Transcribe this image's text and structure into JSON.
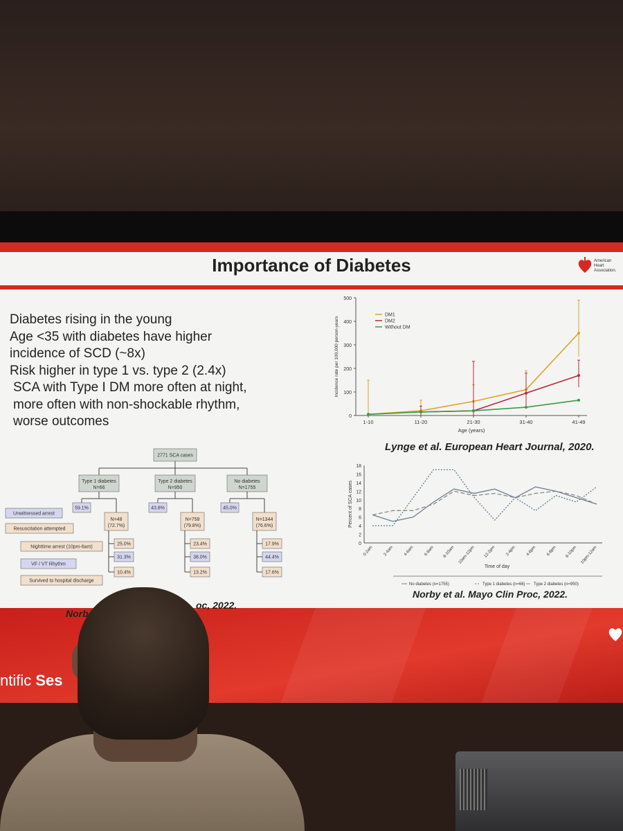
{
  "slide": {
    "title": "Importance of Diabetes",
    "logo_text": [
      "American",
      "Heart",
      "Association."
    ],
    "bullets": [
      "Diabetes rising in the young",
      "Age <35 with diabetes have higher",
      "incidence of SCD (~8x)",
      "Risk higher in type 1 vs. type 2 (2.4x)",
      "SCA with Type I DM more often at night,",
      "more often with non-shockable rhythm,",
      "worse outcomes"
    ],
    "citation_top": "Lynge et al. European Heart Journal, 2020.",
    "citation_bottom": "Norby et al. Mayo Clin Proc, 2022.",
    "citation_left_start": "Norb",
    "citation_left_end": "oc, 2022.",
    "footer": {
      "prefix": "ntific ",
      "bold": "Ses"
    }
  },
  "flow": {
    "root": "2771 SCA cases",
    "groups": [
      {
        "label": "Type 1 diabetes",
        "n": "N=66",
        "unwitnessed": "59.1%",
        "resus_label": "N=48",
        "resus_pct": "(72.7%)",
        "night": "25.0%",
        "vf": "31.3%",
        "survived": "10.4%"
      },
      {
        "label": "Type 2 diabetes",
        "n": "N=950",
        "unwitnessed": "43.8%",
        "resus_label": "N=758",
        "resus_pct": "(79.8%)",
        "night": "23.4%",
        "vf": "38.0%",
        "survived": "13.2%"
      },
      {
        "label": "No diabetes",
        "n": "N=1755",
        "unwitnessed": "45.0%",
        "resus_label": "N=1344",
        "resus_pct": "(76.6%)",
        "night": "17.9%",
        "vf": "44.4%",
        "survived": "17.6%"
      }
    ],
    "row_labels": [
      "Unwitnessed arrest",
      "Resuscitation attempted",
      "Nighttime arrest (10pm-6am)",
      "VF / VT Rhythm",
      "Survived to hospital discharge"
    ]
  },
  "chart_data": [
    {
      "type": "line",
      "categories": [
        "1-10",
        "11-20",
        "21-30",
        "31-40",
        "41-49"
      ],
      "xlabel": "Age (years)",
      "ylabel": "Incidence rate per 100,000 person-years",
      "ylim": [
        0,
        500
      ],
      "yticks": [
        0,
        100,
        200,
        300,
        400,
        500
      ],
      "legend": "top-left",
      "series": [
        {
          "name": "DM1",
          "color": "#d9a528",
          "values": [
            5,
            20,
            60,
            110,
            350
          ],
          "err_hi": [
            150,
            65,
            130,
            190,
            490
          ],
          "err_lo": [
            0,
            0,
            10,
            40,
            250
          ]
        },
        {
          "name": "DM2",
          "color": "#b8283a",
          "values": [
            null,
            15,
            20,
            95,
            170
          ],
          "err_hi": [
            null,
            40,
            230,
            180,
            235
          ],
          "err_lo": [
            null,
            0,
            0,
            40,
            120
          ]
        },
        {
          "name": "Without DM",
          "color": "#3a9a4a",
          "values": [
            5,
            15,
            20,
            35,
            65
          ]
        }
      ]
    },
    {
      "type": "line",
      "categories": [
        "0-2am",
        "2-4am",
        "4-6am",
        "6-8am",
        "8-10am",
        "10am-12pm",
        "12-2pm",
        "2-4pm",
        "4-6pm",
        "6-8pm",
        "8-10pm",
        "10pm-12am"
      ],
      "xlabel": "Time of day",
      "ylabel": "Percent of SCA cases",
      "ylim": [
        0,
        18
      ],
      "yticks": [
        0,
        2,
        4,
        6,
        8,
        10,
        12,
        14,
        16,
        18
      ],
      "legend": "bottom",
      "series": [
        {
          "name": "No diabetes (n=1755)",
          "color": "#6a7f93",
          "dash": "",
          "values": [
            6.5,
            5,
            6,
            9.5,
            12.5,
            11.5,
            12.5,
            10.5,
            13,
            12,
            10.5,
            9
          ]
        },
        {
          "name": "Type 1 diabetes (n=66)",
          "color": "#5a7d9a",
          "dash": "2,2",
          "values": [
            4,
            4,
            10.5,
            17,
            17,
            10.5,
            5.3,
            10.5,
            7.5,
            11,
            9.5,
            13
          ]
        },
        {
          "name": "Type 2 diabetes (n=950)",
          "color": "#8a8a8a",
          "dash": "6,3",
          "values": [
            6.5,
            7.5,
            7.5,
            9,
            12,
            11,
            11.5,
            10.5,
            11.5,
            12,
            11,
            9
          ]
        }
      ]
    }
  ]
}
